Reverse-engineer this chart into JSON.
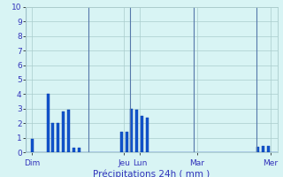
{
  "xlabel": "Précipitations 24h ( mm )",
  "ylabel_values": [
    0,
    1,
    2,
    3,
    4,
    5,
    6,
    7,
    8,
    9,
    10
  ],
  "ylim": [
    0,
    10
  ],
  "bar_color": "#1155cc",
  "bar_edge_color": "#0033aa",
  "background_color": "#d8f4f4",
  "grid_color": "#aacccc",
  "text_color": "#3333bb",
  "day_labels": [
    "Dim",
    "Jeu",
    "Lun",
    "Mar",
    "Mer"
  ],
  "day_tick_positions": [
    2,
    37,
    43,
    65,
    93
  ],
  "xlim": [
    -0.5,
    95.5
  ],
  "num_bars": 96,
  "bar_values": [
    0,
    0,
    0.9,
    0,
    0,
    0,
    0,
    0,
    4.0,
    0,
    2.0,
    0,
    2.0,
    0,
    2.8,
    0,
    2.9,
    0,
    0.3,
    0,
    0.3,
    0,
    0,
    0,
    0,
    0,
    0,
    0,
    0,
    0,
    0,
    0,
    0,
    0,
    0,
    0,
    1.4,
    0,
    1.4,
    0,
    3.0,
    0,
    2.9,
    0,
    2.5,
    0,
    2.4,
    0,
    0,
    0,
    0,
    0,
    0,
    0,
    0,
    0,
    0,
    0,
    0,
    0,
    0,
    0,
    0,
    0,
    0,
    0,
    0,
    0,
    0,
    0,
    0,
    0,
    0,
    0,
    0,
    0,
    0,
    0,
    0,
    0,
    0,
    0,
    0,
    0,
    0,
    0,
    0,
    0,
    0.35,
    0,
    0.4,
    0,
    0.4,
    0,
    0,
    0
  ],
  "vline_positions": [
    0,
    24,
    40,
    64,
    88
  ],
  "xlabel_fontsize": 7.5,
  "tick_fontsize": 6.5
}
